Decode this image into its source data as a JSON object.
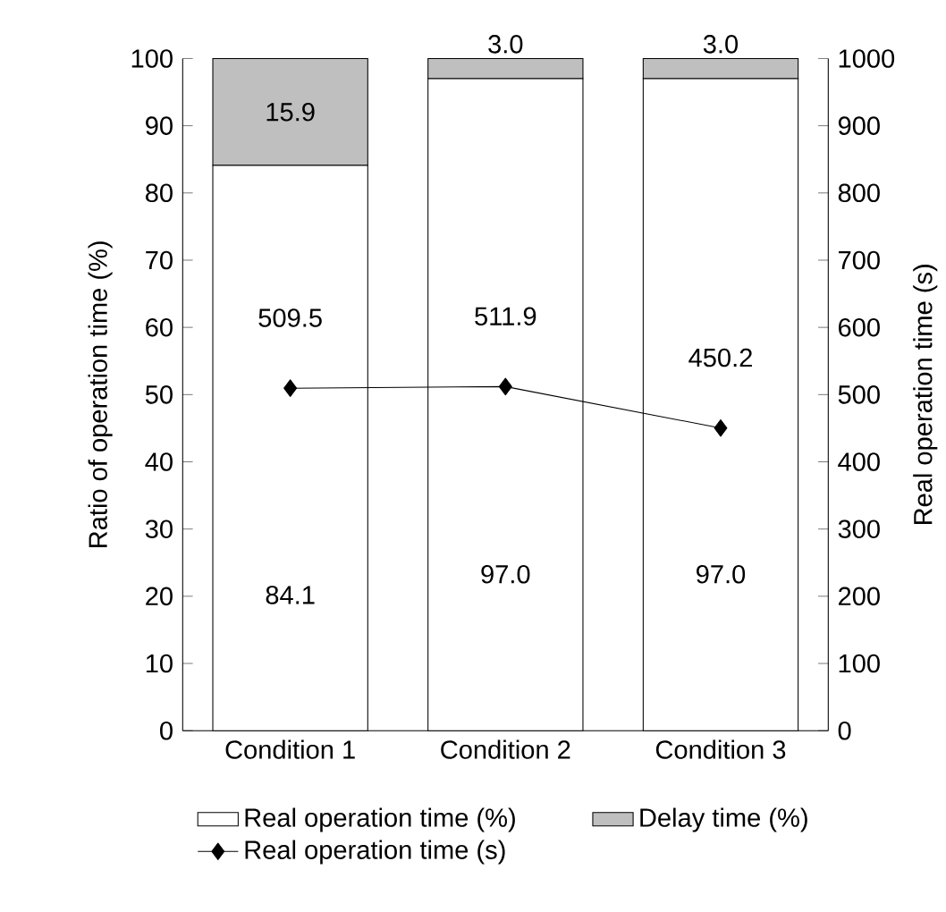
{
  "chart_data": {
    "type": "bar",
    "stacked": true,
    "categories": [
      "Condition 1",
      "Condition 2",
      "Condition 3"
    ],
    "series": [
      {
        "name": "Real operation time (%)",
        "color": "#ffffff",
        "values": [
          84.1,
          97.0,
          97.0
        ],
        "value_labels": [
          "84.1",
          "97.0",
          "97.0"
        ]
      },
      {
        "name": "Delay time (%)",
        "color": "#bfbfbf",
        "values": [
          15.9,
          3.0,
          3.0
        ],
        "value_labels": [
          "15.9",
          "3.0",
          "3.0"
        ]
      },
      {
        "name": "Real operation time (s)",
        "type": "line",
        "axis": "y2",
        "color": "#000000",
        "values": [
          509.5,
          511.9,
          450.2
        ],
        "value_labels": [
          "509.5",
          "511.9",
          "450.2"
        ]
      }
    ],
    "ylabel": "Ratio of operation time (%)",
    "y2label": "Real operation time (s)",
    "ylim": [
      0,
      100
    ],
    "yticks": [
      0,
      10,
      20,
      30,
      40,
      50,
      60,
      70,
      80,
      90,
      100
    ],
    "y2lim": [
      0,
      1000
    ],
    "y2ticks": [
      0,
      100,
      200,
      300,
      400,
      500,
      600,
      700,
      800,
      900,
      1000
    ],
    "marker": "diamond",
    "legend": "bottom"
  }
}
